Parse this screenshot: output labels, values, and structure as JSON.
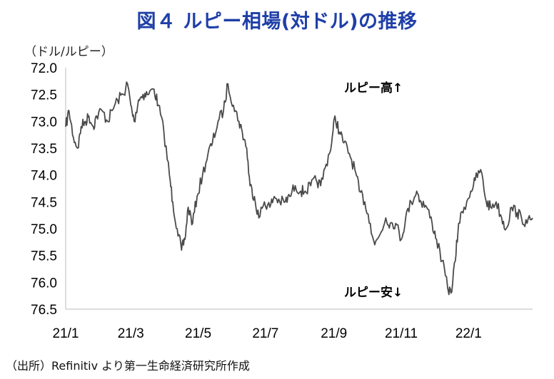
{
  "chart_data": {
    "type": "line",
    "title": "図４ ルピー相場(対ドル)の推移",
    "unit_label": "（ドル/ルピー）",
    "y_inverted": true,
    "ylim": [
      72.0,
      76.5
    ],
    "yticks": [
      "72.0",
      "72.5",
      "73.0",
      "73.5",
      "74.0",
      "74.5",
      "75.0",
      "75.5",
      "76.0",
      "76.5"
    ],
    "xticks": [
      "21/1",
      "21/3",
      "21/5",
      "21/7",
      "21/9",
      "21/11",
      "22/1"
    ],
    "xlim": [
      "2021-01-01",
      "2022-02-28"
    ],
    "annotations": [
      "ルピー高↑",
      "ルピー安↓"
    ],
    "source_note": "（出所）Refinitiv より第一生命経済研究所作成",
    "grid": false,
    "line_color": "#4a4a4a",
    "series": [
      {
        "x": [
          "2021-01-01",
          "2021-01-04",
          "2021-01-08",
          "2021-01-12",
          "2021-01-15",
          "2021-01-19",
          "2021-01-22",
          "2021-01-26",
          "2021-01-29",
          "2021-02-03",
          "2021-02-08",
          "2021-02-12",
          "2021-02-17",
          "2021-02-22",
          "2021-02-26",
          "2021-03-01",
          "2021-03-04",
          "2021-03-08",
          "2021-03-12",
          "2021-03-16",
          "2021-03-22",
          "2021-03-26",
          "2021-03-31",
          "2021-04-05",
          "2021-04-08",
          "2021-04-12",
          "2021-04-16",
          "2021-04-19",
          "2021-04-22",
          "2021-04-26",
          "2021-04-30",
          "2021-05-05",
          "2021-05-10",
          "2021-05-14",
          "2021-05-19",
          "2021-05-24",
          "2021-05-28",
          "2021-06-02",
          "2021-06-07",
          "2021-06-10",
          "2021-06-14",
          "2021-06-17",
          "2021-06-21",
          "2021-06-25",
          "2021-06-30",
          "2021-07-05",
          "2021-07-09",
          "2021-07-14",
          "2021-07-19",
          "2021-07-23",
          "2021-07-28",
          "2021-08-02",
          "2021-08-06",
          "2021-08-11",
          "2021-08-16",
          "2021-08-20",
          "2021-08-25",
          "2021-08-30",
          "2021-09-02",
          "2021-09-06",
          "2021-09-10",
          "2021-09-15",
          "2021-09-20",
          "2021-09-24",
          "2021-09-29",
          "2021-10-04",
          "2021-10-08",
          "2021-10-13",
          "2021-10-18",
          "2021-10-22",
          "2021-10-27",
          "2021-11-01",
          "2021-11-05",
          "2021-11-10",
          "2021-11-15",
          "2021-11-19",
          "2021-11-24",
          "2021-11-29",
          "2021-12-03",
          "2021-12-08",
          "2021-12-13",
          "2021-12-16",
          "2021-12-20",
          "2021-12-23",
          "2021-12-28",
          "2022-01-03",
          "2022-01-07",
          "2022-01-12",
          "2022-01-17",
          "2022-01-21",
          "2022-01-26",
          "2022-01-31",
          "2022-02-04",
          "2022-02-09",
          "2022-02-14",
          "2022-02-18",
          "2022-02-23",
          "2022-02-28"
        ],
        "values": [
          73.1,
          72.8,
          73.3,
          73.5,
          73.1,
          73.0,
          72.9,
          73.1,
          72.9,
          72.8,
          73.0,
          72.8,
          72.6,
          72.5,
          72.3,
          72.7,
          73.0,
          72.6,
          72.5,
          72.5,
          72.4,
          72.7,
          73.2,
          74.0,
          74.5,
          75.0,
          75.4,
          75.2,
          74.6,
          74.9,
          74.4,
          74.0,
          73.6,
          73.4,
          73.0,
          72.8,
          72.3,
          72.7,
          73.0,
          73.2,
          73.5,
          74.2,
          74.4,
          74.8,
          74.5,
          74.6,
          74.4,
          74.5,
          74.5,
          74.4,
          74.2,
          74.3,
          74.3,
          74.2,
          74.1,
          74.2,
          73.8,
          73.4,
          72.9,
          73.2,
          73.4,
          73.6,
          73.9,
          74.3,
          74.5,
          74.9,
          75.3,
          75.1,
          74.8,
          74.9,
          74.9,
          75.2,
          74.8,
          74.5,
          74.3,
          74.5,
          74.6,
          74.9,
          75.2,
          75.6,
          76.1,
          76.2,
          75.6,
          74.9,
          74.6,
          74.3,
          74.1,
          73.9,
          74.5,
          74.6,
          74.5,
          74.8,
          75.0,
          74.6,
          74.7,
          74.8,
          74.9,
          74.8
        ]
      }
    ]
  }
}
